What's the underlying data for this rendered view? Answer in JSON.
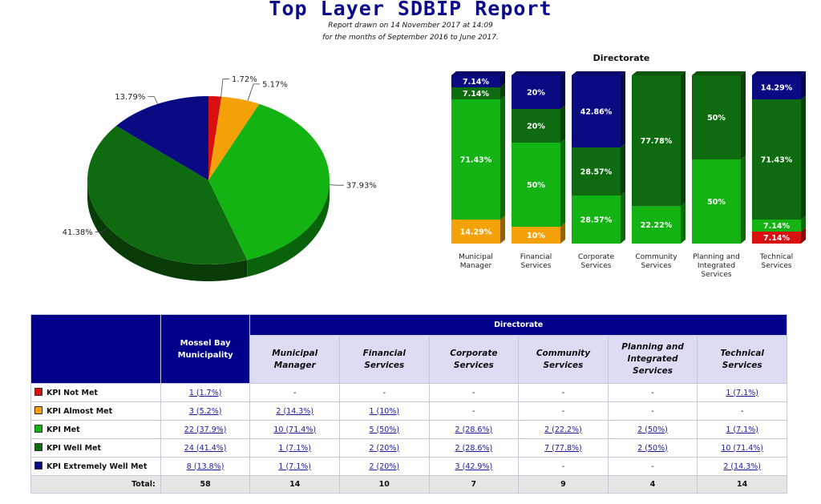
{
  "header": {
    "title": "Top Layer SDBIP Report",
    "line1": "Report drawn on 14 November 2017 at 14:09",
    "line2": "for the months of September 2016 to June 2017."
  },
  "colors": {
    "not_met": "#d81010",
    "almost_met": "#f5a20a",
    "met": "#13b313",
    "well_met": "#0f6b0f",
    "extremely_well_met": "#0a0a82",
    "table_header": "#00008b",
    "table_subheader": "#dcdcf5"
  },
  "chart_data": [
    {
      "type": "pie",
      "slices": [
        {
          "key": "not_met",
          "value": 1.72,
          "label": "1.72%"
        },
        {
          "key": "almost_met",
          "value": 5.17,
          "label": "5.17%"
        },
        {
          "key": "met",
          "value": 37.93,
          "label": "37.93%"
        },
        {
          "key": "well_met",
          "value": 41.38,
          "label": "41.38%"
        },
        {
          "key": "extremely_well_met",
          "value": 13.79,
          "label": "13.79%"
        }
      ]
    },
    {
      "type": "bar",
      "stacked": "100%",
      "title": "Directorate",
      "categories": [
        [
          "Municipal",
          "Manager"
        ],
        [
          "Financial",
          "Services"
        ],
        [
          "Corporate",
          "Services"
        ],
        [
          "Community",
          "Services"
        ],
        [
          "Planning and",
          "Integrated",
          "Services"
        ],
        [
          "Technical",
          "Services"
        ]
      ],
      "series": [
        {
          "key": "not_met",
          "values": [
            0,
            0,
            0,
            0,
            0,
            7.14
          ]
        },
        {
          "key": "almost_met",
          "values": [
            14.29,
            10,
            0,
            0,
            0,
            0
          ]
        },
        {
          "key": "met",
          "values": [
            71.43,
            50,
            28.57,
            22.22,
            50,
            7.14
          ]
        },
        {
          "key": "well_met",
          "values": [
            7.14,
            20,
            28.57,
            77.78,
            50,
            71.43
          ]
        },
        {
          "key": "extremely_well_met",
          "values": [
            7.14,
            20,
            42.86,
            0,
            0,
            14.29
          ]
        }
      ]
    }
  ],
  "table": {
    "directorate_label": "Directorate",
    "total_header": [
      "Mossel Bay",
      "Municipality"
    ],
    "dir_headers": [
      [
        "Municipal",
        "Manager"
      ],
      [
        "Financial",
        "Services"
      ],
      [
        "Corporate",
        "Services"
      ],
      [
        "Community",
        "Services"
      ],
      [
        "Planning and",
        "Integrated",
        "Services"
      ],
      [
        "Technical",
        "Services"
      ]
    ],
    "rows": [
      {
        "label": "KPI Not Met",
        "key": "not_met",
        "cells": [
          "1 (1.7%)",
          "-",
          "-",
          "-",
          "-",
          "-",
          "1 (7.1%)"
        ]
      },
      {
        "label": "KPI Almost Met",
        "key": "almost_met",
        "cells": [
          "3 (5.2%)",
          "2 (14.3%)",
          "1 (10%)",
          "-",
          "-",
          "-",
          "-"
        ]
      },
      {
        "label": "KPI Met",
        "key": "met",
        "cells": [
          "22 (37.9%)",
          "10 (71.4%)",
          "5 (50%)",
          "2 (28.6%)",
          "2 (22.2%)",
          "2 (50%)",
          "1 (7.1%)"
        ]
      },
      {
        "label": "KPI Well Met",
        "key": "well_met",
        "cells": [
          "24 (41.4%)",
          "1 (7.1%)",
          "2 (20%)",
          "2 (28.6%)",
          "7 (77.8%)",
          "2 (50%)",
          "10 (71.4%)"
        ]
      },
      {
        "label": "KPI Extremely Well Met",
        "key": "extremely_well_met",
        "cells": [
          "8 (13.8%)",
          "1 (7.1%)",
          "2 (20%)",
          "3 (42.9%)",
          "-",
          "-",
          "2 (14.3%)"
        ]
      }
    ],
    "total_label": "Total:",
    "totals": [
      "58",
      "14",
      "10",
      "7",
      "9",
      "4",
      "14"
    ]
  }
}
